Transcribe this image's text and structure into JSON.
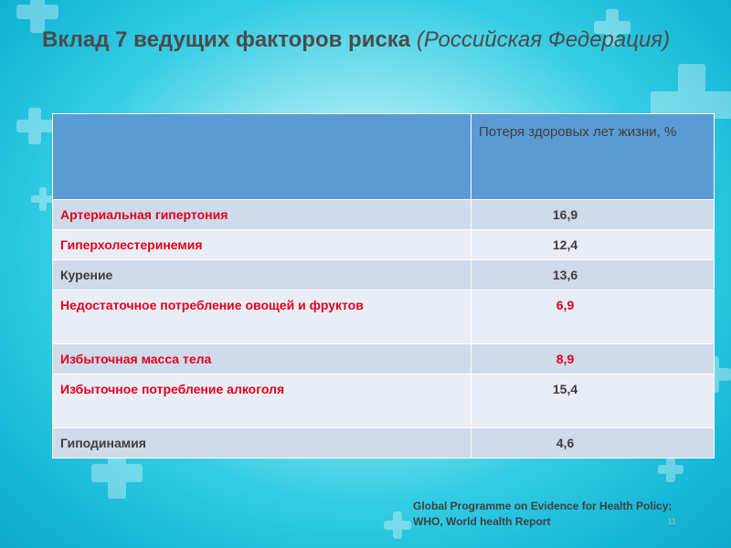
{
  "slide": {
    "title_main": "Вклад 7 ведущих факторов риска",
    "title_sub": "(Российская Федерация)"
  },
  "table": {
    "header": {
      "factor": "",
      "value": "Потеря здоровых лет жизни, %"
    },
    "rows": [
      {
        "factor": "Артериальная гипертония",
        "value": "16,9",
        "factor_color": "#e3001b",
        "value_color": "#3d3d3d"
      },
      {
        "factor": "Гиперхолестеринемия",
        "value": "12,4",
        "factor_color": "#e3001b",
        "value_color": "#3d3d3d"
      },
      {
        "factor": "Курение",
        "value": "13,6",
        "factor_color": "#3d3d3d",
        "value_color": "#3d3d3d"
      },
      {
        "factor": "Недостаточное потребление овощей и фруктов",
        "value": "6,9",
        "factor_color": "#e3001b",
        "value_color": "#e3001b"
      },
      {
        "factor": "Избыточная масса тела",
        "value": "8,9",
        "factor_color": "#e3001b",
        "value_color": "#e3001b"
      },
      {
        "factor": "Избыточное потребление алкоголя",
        "value": "15,4",
        "factor_color": "#e3001b",
        "value_color": "#3d3d3d"
      },
      {
        "factor": "Гиподинамия",
        "value": "4,6",
        "factor_color": "#3d3d3d",
        "value_color": "#3d3d3d"
      }
    ]
  },
  "source": {
    "line1": "Global Programme on Evidence for Health Policy;",
    "line2": "WHO, World health Report"
  },
  "page_number": "11",
  "colors": {
    "header_bg": "#5b9bd5",
    "row_odd": "#cfdaea",
    "row_even": "#e9eef6",
    "accent_red": "#e3001b",
    "text_dark": "#3d3d3d"
  }
}
